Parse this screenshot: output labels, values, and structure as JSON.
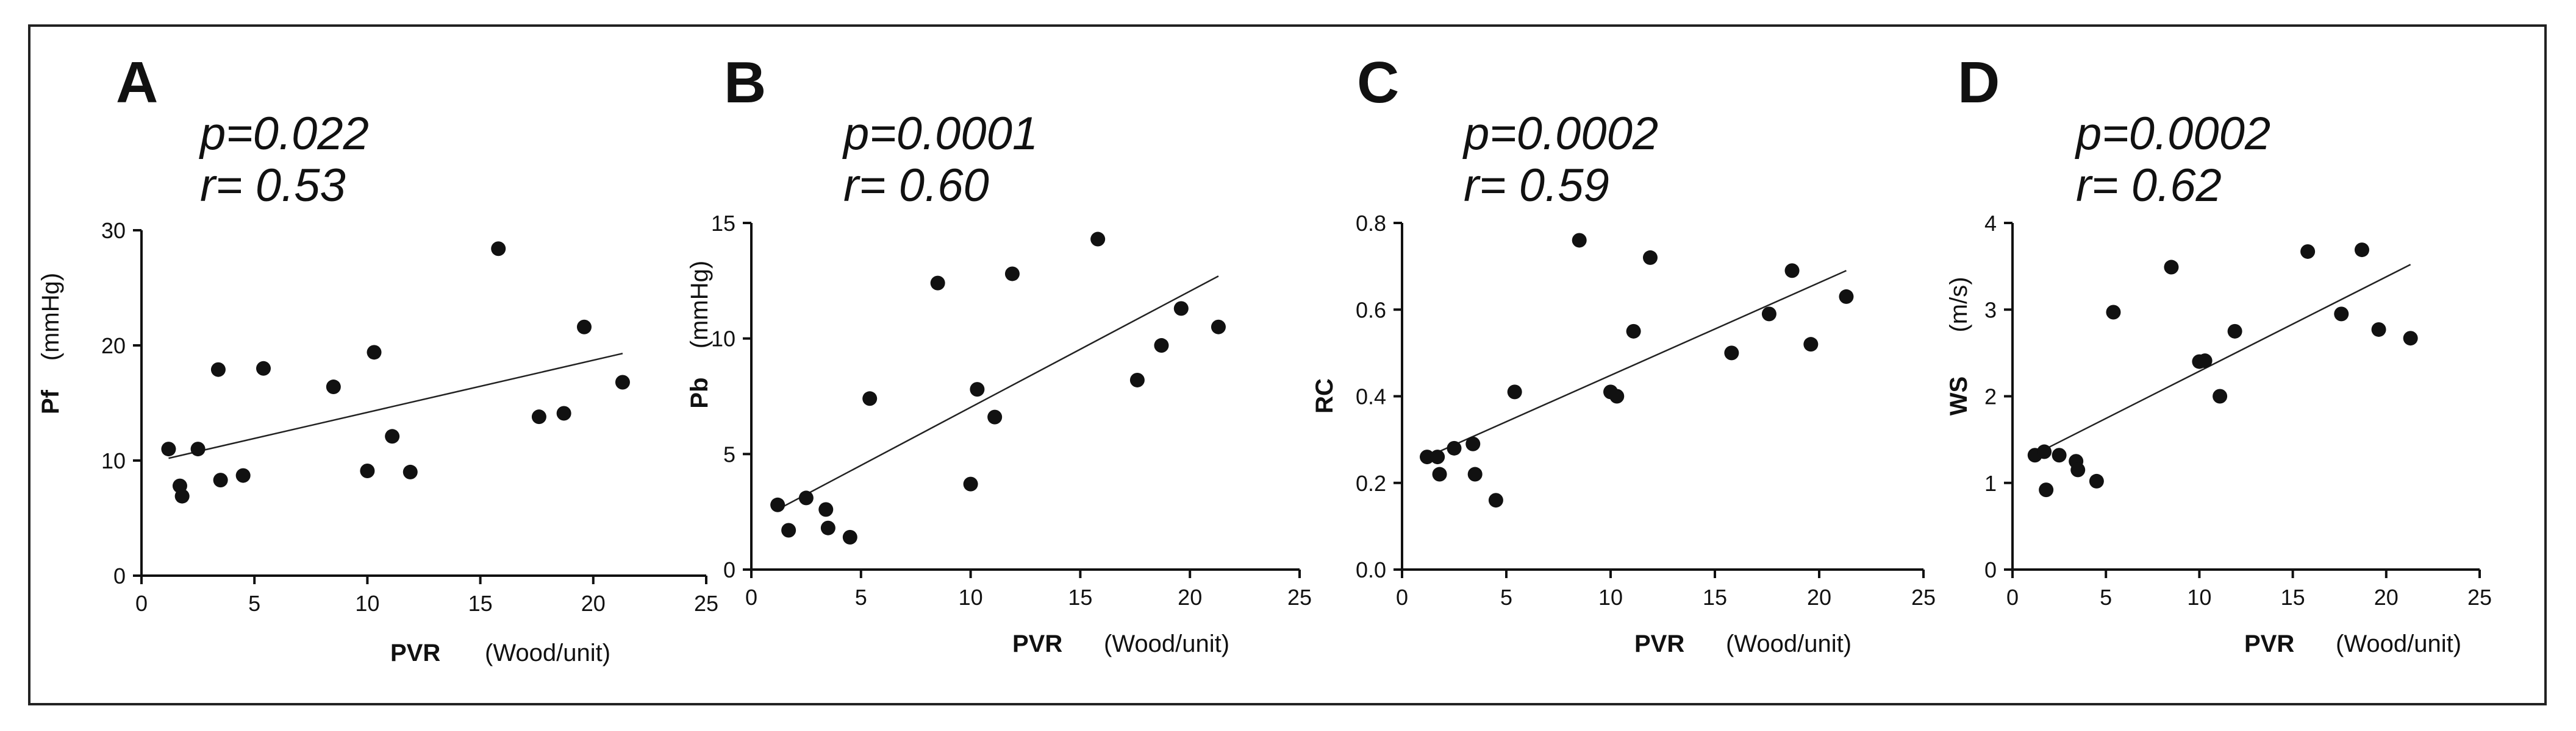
{
  "figure": {
    "border_color": "#222222",
    "point_color": "#111111"
  },
  "chart_data": [
    {
      "type": "scatter",
      "panel": "A",
      "stats": {
        "p": "p=0.022",
        "r": "r= 0.53"
      },
      "xlabel": "PVR",
      "xunit": "(Wood/unit)",
      "ylabel": "Pf",
      "yunit": "(mmHg)",
      "xlim": [
        0,
        25
      ],
      "ylim": [
        0,
        30
      ],
      "xticks": [
        0,
        5,
        10,
        15,
        20,
        25
      ],
      "yticks": [
        0,
        10,
        20,
        30
      ],
      "ytick_labels": [
        "0",
        "10",
        "20",
        "30"
      ],
      "points": [
        {
          "x": 1.2,
          "y": 11.0
        },
        {
          "x": 1.7,
          "y": 7.8
        },
        {
          "x": 1.8,
          "y": 6.9
        },
        {
          "x": 2.5,
          "y": 11.0
        },
        {
          "x": 3.4,
          "y": 17.9
        },
        {
          "x": 3.5,
          "y": 8.3
        },
        {
          "x": 4.5,
          "y": 8.7
        },
        {
          "x": 5.4,
          "y": 18.0
        },
        {
          "x": 8.5,
          "y": 16.4
        },
        {
          "x": 10.0,
          "y": 9.1
        },
        {
          "x": 10.3,
          "y": 19.4
        },
        {
          "x": 11.1,
          "y": 12.1
        },
        {
          "x": 11.9,
          "y": 9.0
        },
        {
          "x": 15.8,
          "y": 28.4
        },
        {
          "x": 17.6,
          "y": 13.8
        },
        {
          "x": 18.7,
          "y": 14.1
        },
        {
          "x": 19.6,
          "y": 21.6
        },
        {
          "x": 21.3,
          "y": 16.8
        }
      ],
      "regression": {
        "x": [
          1.2,
          21.3
        ],
        "y": [
          10.2,
          19.3
        ]
      }
    },
    {
      "type": "scatter",
      "panel": "B",
      "stats": {
        "p": "p=0.0001",
        "r": "r= 0.60"
      },
      "xlabel": "PVR",
      "xunit": "(Wood/unit)",
      "ylabel": "Pb",
      "yunit": "(mmHg)",
      "xlim": [
        0,
        25
      ],
      "ylim": [
        0,
        15
      ],
      "xticks": [
        0,
        5,
        10,
        15,
        20,
        25
      ],
      "yticks": [
        0,
        5,
        10,
        15
      ],
      "ytick_labels": [
        "0",
        "5",
        "10",
        "15"
      ],
      "points": [
        {
          "x": 1.2,
          "y": 2.8
        },
        {
          "x": 1.7,
          "y": 1.7
        },
        {
          "x": 2.5,
          "y": 3.1
        },
        {
          "x": 3.4,
          "y": 2.6
        },
        {
          "x": 3.5,
          "y": 1.8
        },
        {
          "x": 4.5,
          "y": 1.4
        },
        {
          "x": 5.4,
          "y": 7.4
        },
        {
          "x": 8.5,
          "y": 12.4
        },
        {
          "x": 10.0,
          "y": 3.7
        },
        {
          "x": 10.3,
          "y": 7.8
        },
        {
          "x": 11.1,
          "y": 6.6
        },
        {
          "x": 11.9,
          "y": 12.8
        },
        {
          "x": 15.8,
          "y": 14.3
        },
        {
          "x": 17.6,
          "y": 8.2
        },
        {
          "x": 18.7,
          "y": 9.7
        },
        {
          "x": 19.6,
          "y": 11.3
        },
        {
          "x": 21.3,
          "y": 10.5
        }
      ],
      "regression": {
        "x": [
          1.2,
          21.3
        ],
        "y": [
          2.6,
          12.7
        ]
      }
    },
    {
      "type": "scatter",
      "panel": "C",
      "stats": {
        "p": "p=0.0002",
        "r": "r= 0.59"
      },
      "xlabel": "PVR",
      "xunit": "(Wood/unit)",
      "ylabel": "RC",
      "yunit": "",
      "xlim": [
        0,
        25
      ],
      "ylim": [
        0,
        0.8
      ],
      "xticks": [
        0,
        5,
        10,
        15,
        20,
        25
      ],
      "yticks": [
        0,
        0.2,
        0.4,
        0.6,
        0.8
      ],
      "ytick_labels": [
        "0.0",
        "0.2",
        "0.4",
        "0.6",
        "0.8"
      ],
      "points": [
        {
          "x": 1.2,
          "y": 0.26
        },
        {
          "x": 1.7,
          "y": 0.26
        },
        {
          "x": 1.8,
          "y": 0.22
        },
        {
          "x": 2.5,
          "y": 0.28
        },
        {
          "x": 3.4,
          "y": 0.29
        },
        {
          "x": 3.5,
          "y": 0.22
        },
        {
          "x": 4.5,
          "y": 0.16
        },
        {
          "x": 5.4,
          "y": 0.41
        },
        {
          "x": 8.5,
          "y": 0.76
        },
        {
          "x": 10.0,
          "y": 0.41
        },
        {
          "x": 10.3,
          "y": 0.4
        },
        {
          "x": 11.1,
          "y": 0.55
        },
        {
          "x": 11.9,
          "y": 0.72
        },
        {
          "x": 15.8,
          "y": 0.5
        },
        {
          "x": 17.6,
          "y": 0.59
        },
        {
          "x": 18.7,
          "y": 0.69
        },
        {
          "x": 19.6,
          "y": 0.52
        },
        {
          "x": 21.3,
          "y": 0.63
        }
      ],
      "regression": {
        "x": [
          1.2,
          21.3
        ],
        "y": [
          0.26,
          0.69
        ]
      }
    },
    {
      "type": "scatter",
      "panel": "D",
      "stats": {
        "p": "p=0.0002",
        "r": "r= 0.62"
      },
      "xlabel": "PVR",
      "xunit": "(Wood/unit)",
      "ylabel": "WS",
      "yunit": "(m/s)",
      "xlim": [
        0,
        25
      ],
      "ylim": [
        0,
        4
      ],
      "xticks": [
        0,
        5,
        10,
        15,
        20,
        25
      ],
      "yticks": [
        0,
        1,
        2,
        3,
        4
      ],
      "ytick_labels": [
        "0",
        "1",
        "2",
        "3",
        "4"
      ],
      "points": [
        {
          "x": 1.2,
          "y": 1.32
        },
        {
          "x": 1.7,
          "y": 1.36
        },
        {
          "x": 1.8,
          "y": 0.92
        },
        {
          "x": 2.5,
          "y": 1.32
        },
        {
          "x": 3.4,
          "y": 1.25
        },
        {
          "x": 3.5,
          "y": 1.15
        },
        {
          "x": 4.5,
          "y": 1.02
        },
        {
          "x": 5.4,
          "y": 2.97
        },
        {
          "x": 8.5,
          "y": 3.49
        },
        {
          "x": 10.0,
          "y": 2.4
        },
        {
          "x": 10.3,
          "y": 2.41
        },
        {
          "x": 11.1,
          "y": 2.0
        },
        {
          "x": 11.9,
          "y": 2.75
        },
        {
          "x": 15.8,
          "y": 3.67
        },
        {
          "x": 17.6,
          "y": 2.95
        },
        {
          "x": 18.7,
          "y": 3.69
        },
        {
          "x": 19.6,
          "y": 2.77
        },
        {
          "x": 21.3,
          "y": 2.67
        }
      ],
      "regression": {
        "x": [
          1.2,
          21.3
        ],
        "y": [
          1.33,
          3.52
        ]
      }
    }
  ]
}
